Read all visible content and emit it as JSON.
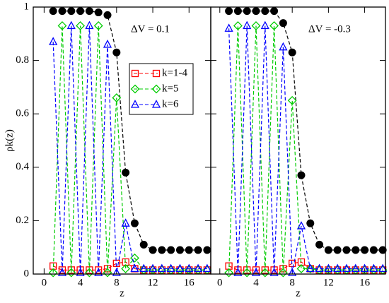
{
  "chart_data": [
    {
      "type": "line",
      "annotation": "ΔV = 0.1",
      "x_label": "z",
      "y_label": "ρk(z)",
      "xlim": [
        -1.2,
        18.4
      ],
      "ylim": [
        0,
        1
      ],
      "xticks": [
        0,
        4,
        8,
        12,
        16
      ],
      "yticks": [
        0,
        0.2,
        0.4,
        0.6,
        0.8,
        1
      ],
      "x": [
        1,
        2,
        3,
        4,
        5,
        6,
        7,
        8,
        9,
        10,
        11,
        12,
        13,
        14,
        15,
        16,
        17,
        18
      ],
      "series": [
        {
          "color": "#000000",
          "marker": "circle",
          "values": [
            0.985,
            0.985,
            0.985,
            0.985,
            0.985,
            0.98,
            0.97,
            0.83,
            0.38,
            0.19,
            0.11,
            0.09,
            0.09,
            0.09,
            0.09,
            0.09,
            0.09,
            0.09
          ]
        },
        {
          "name": "k=1-4",
          "color": "#ff0000",
          "marker": "square",
          "values": [
            0.03,
            0.015,
            0.015,
            0.015,
            0.015,
            0.015,
            0.02,
            0.04,
            0.045,
            0.02,
            0.015,
            0.015,
            0.015,
            0.015,
            0.015,
            0.015,
            0.015,
            0.015
          ]
        },
        {
          "name": "k=5",
          "color": "#00cc00",
          "marker": "diamond",
          "values": [
            0.005,
            0.93,
            0.005,
            0.93,
            0.005,
            0.93,
            0.005,
            0.66,
            0.02,
            0.06,
            0.015,
            0.015,
            0.015,
            0.015,
            0.015,
            0.015,
            0.015,
            0.015
          ]
        },
        {
          "name": "k=6",
          "color": "#0000ff",
          "marker": "triangle",
          "values": [
            0.87,
            0.005,
            0.93,
            0.005,
            0.93,
            0.005,
            0.86,
            0.005,
            0.19,
            0.02,
            0.02,
            0.02,
            0.02,
            0.02,
            0.02,
            0.02,
            0.02,
            0.02
          ]
        }
      ]
    },
    {
      "type": "line",
      "annotation": "ΔV = -0.3",
      "x_label": "z",
      "xlim": [
        -1,
        18.3
      ],
      "ylim": [
        0,
        1
      ],
      "xticks": [
        0,
        4,
        8,
        12,
        16
      ],
      "yticks": [
        0,
        0.2,
        0.4,
        0.6,
        0.8,
        1
      ],
      "x": [
        1,
        2,
        3,
        4,
        5,
        6,
        7,
        8,
        9,
        10,
        11,
        12,
        13,
        14,
        15,
        16,
        17,
        18
      ],
      "series": [
        {
          "color": "#000000",
          "marker": "circle",
          "values": [
            0.985,
            0.985,
            0.985,
            0.985,
            0.985,
            0.985,
            0.94,
            0.83,
            0.37,
            0.19,
            0.11,
            0.09,
            0.09,
            0.09,
            0.09,
            0.09,
            0.09,
            0.09
          ]
        },
        {
          "color": "#ff0000",
          "marker": "square",
          "values": [
            0.03,
            0.015,
            0.015,
            0.015,
            0.015,
            0.015,
            0.02,
            0.04,
            0.045,
            0.02,
            0.015,
            0.015,
            0.015,
            0.015,
            0.015,
            0.015,
            0.015,
            0.015
          ]
        },
        {
          "color": "#00cc00",
          "marker": "diamond",
          "values": [
            0.005,
            0.93,
            0.005,
            0.93,
            0.005,
            0.93,
            0.005,
            0.65,
            0.02,
            0.02,
            0.015,
            0.015,
            0.015,
            0.015,
            0.015,
            0.015,
            0.015,
            0.015
          ]
        },
        {
          "color": "#0000ff",
          "marker": "triangle",
          "values": [
            0.92,
            0.005,
            0.93,
            0.005,
            0.93,
            0.005,
            0.85,
            0.005,
            0.18,
            0.02,
            0.02,
            0.02,
            0.02,
            0.02,
            0.02,
            0.02,
            0.02,
            0.02
          ]
        }
      ]
    }
  ]
}
